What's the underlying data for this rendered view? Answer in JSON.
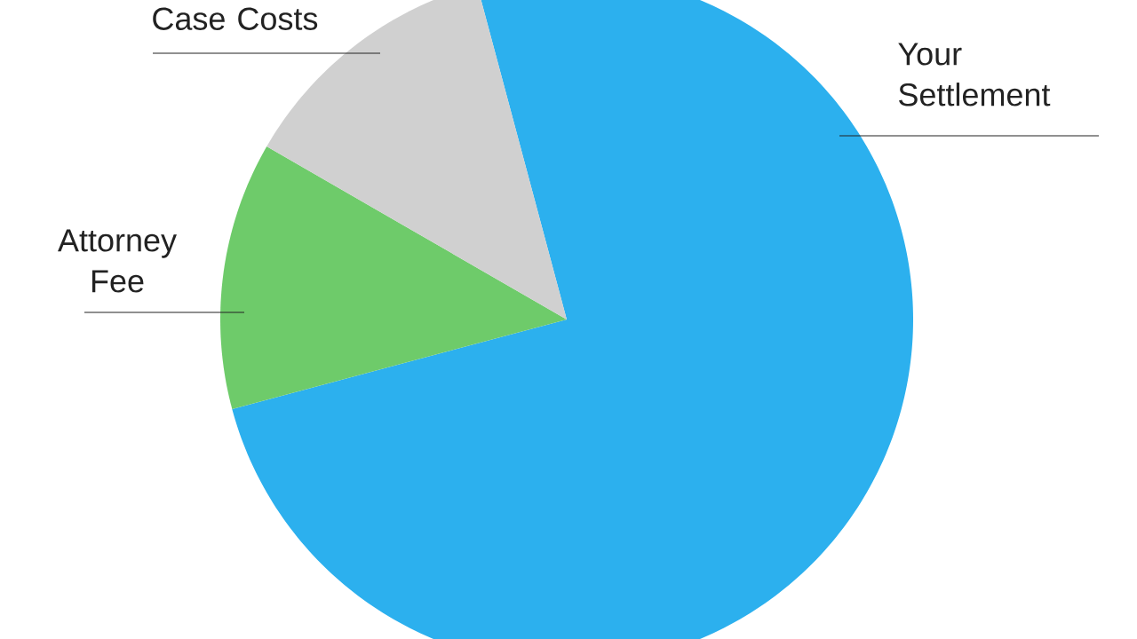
{
  "chart_data": {
    "type": "pie",
    "categories": [
      "Your Settlement",
      "Attorney Fee",
      "Case Costs"
    ],
    "values": [
      75,
      12.5,
      12.5
    ],
    "colors": [
      "#2cb0ee",
      "#6ecb6a",
      "#d0d0d0"
    ]
  }
}
